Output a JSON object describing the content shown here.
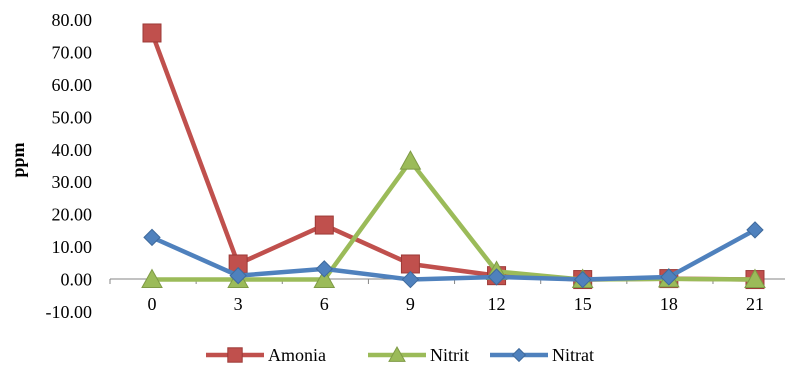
{
  "chart_data": {
    "type": "line",
    "x": [
      0,
      3,
      6,
      9,
      12,
      15,
      18,
      21
    ],
    "xlabel": "",
    "ylabel": "ppm",
    "ylim": [
      -10,
      80
    ],
    "yticks": [
      "80.00",
      "70.00",
      "60.00",
      "50.00",
      "40.00",
      "30.00",
      "20.00",
      "10.00",
      "0.00",
      "-10.00"
    ],
    "xticks": [
      "0",
      "3",
      "6",
      "9",
      "12",
      "15",
      "18",
      "21"
    ],
    "grid": false,
    "legend": "bottom",
    "series": [
      {
        "name": "Amonia",
        "color": "#C0504D",
        "marker": "square",
        "values": [
          76.0,
          4.8,
          16.8,
          4.8,
          1.2,
          0.0,
          0.3,
          0.0
        ]
      },
      {
        "name": "Nitrit",
        "color": "#9BBB59",
        "marker": "triangle",
        "values": [
          0.0,
          0.0,
          0.0,
          36.5,
          2.5,
          0.0,
          0.2,
          0.0
        ]
      },
      {
        "name": "Nitrat",
        "color": "#4F81BD",
        "marker": "diamond",
        "values": [
          13.0,
          1.2,
          3.3,
          0.0,
          0.8,
          0.0,
          0.8,
          15.3
        ]
      }
    ]
  }
}
